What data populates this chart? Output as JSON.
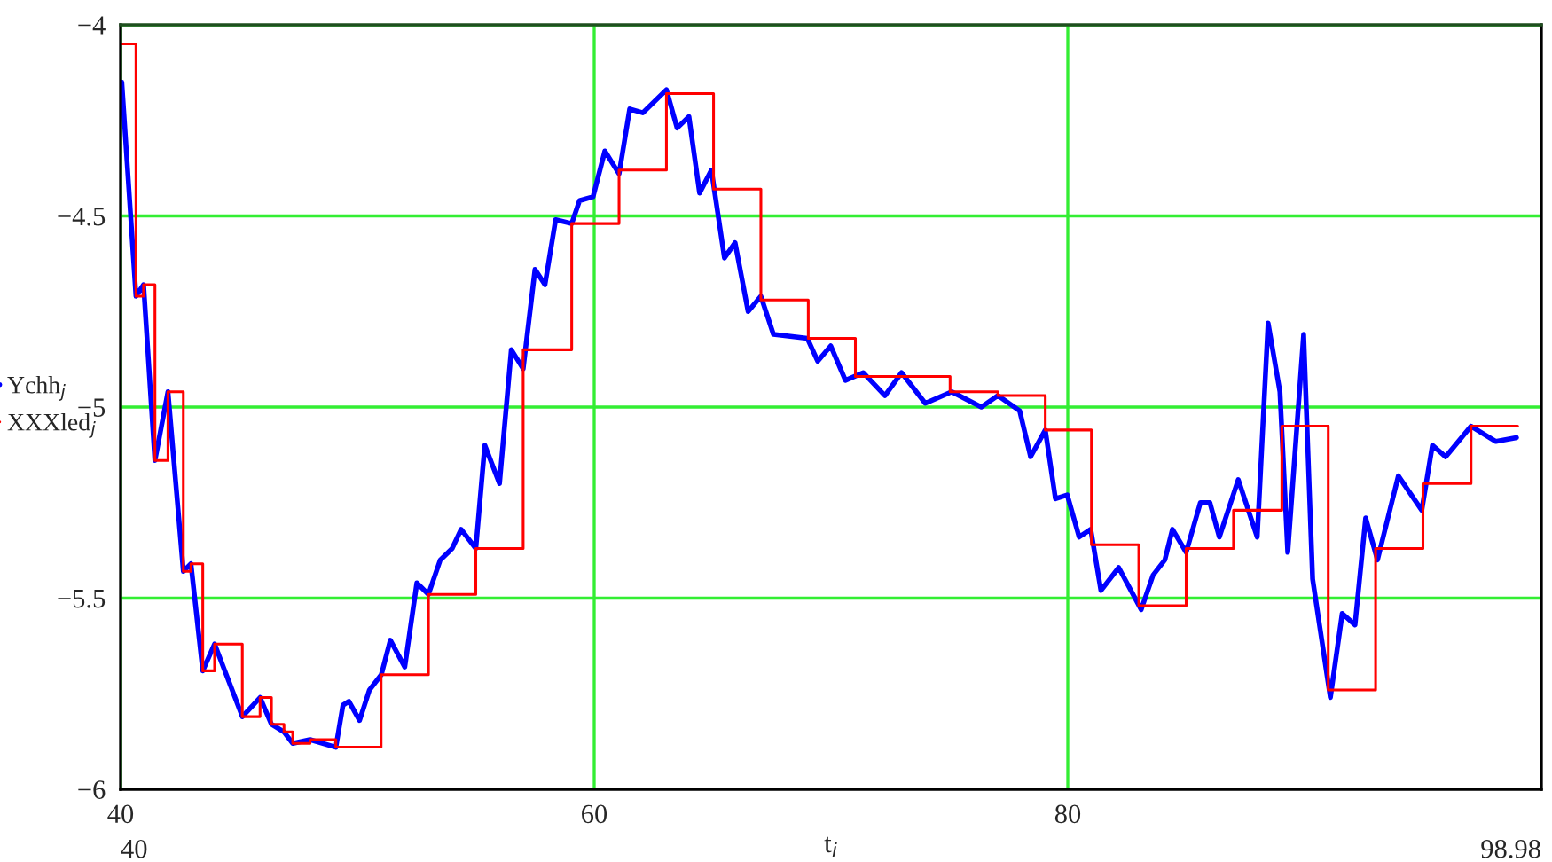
{
  "chart_data": {
    "type": "line",
    "xlabel": "t$_{i}$",
    "xlim": [
      40,
      100
    ],
    "ylim": [
      -6,
      -4
    ],
    "xticks": [
      40,
      60,
      80
    ],
    "yticks": [
      -4,
      -4.5,
      -5,
      -5.5,
      -6
    ],
    "grid": true,
    "legend": "left",
    "annotations": [
      "40",
      "98.98"
    ],
    "series": [
      {
        "name": "Ychh$_{j}$",
        "color": "#0000ff",
        "x": [
          40.05,
          40.65,
          40.97,
          41.45,
          42.0,
          42.65,
          42.97,
          43.47,
          43.97,
          45.14,
          45.89,
          46.37,
          46.9,
          47.27,
          48.0,
          49.09,
          49.39,
          49.64,
          50.09,
          50.51,
          51.01,
          51.39,
          52.0,
          52.51,
          53.0,
          53.5,
          54.0,
          54.38,
          55.0,
          55.38,
          56.0,
          56.5,
          57.0,
          57.5,
          57.92,
          58.37,
          59.05,
          59.38,
          59.95,
          60.45,
          61.05,
          61.5,
          62.05,
          63.05,
          63.5,
          64.0,
          64.45,
          64.95,
          65.5,
          65.95,
          66.5,
          67.04,
          67.57,
          69.0,
          69.44,
          69.99,
          70.61,
          71.36,
          72.28,
          72.98,
          73.98,
          75.1,
          76.35,
          77.05,
          77.97,
          78.43,
          79.05,
          79.48,
          79.98,
          80.48,
          80.97,
          81.4,
          82.15,
          83.1,
          83.6,
          84.1,
          84.42,
          85.0,
          85.6,
          86.0,
          86.4,
          87.2,
          88.0,
          88.46,
          88.96,
          89.29,
          89.96,
          90.34,
          91.09,
          91.59,
          92.13,
          92.58,
          93.08,
          93.96,
          94.95,
          95.4,
          95.96,
          97.03,
          98.08,
          98.95
        ],
        "values": [
          -4.15,
          -4.71,
          -4.68,
          -5.14,
          -4.96,
          -5.43,
          -5.41,
          -5.69,
          -5.62,
          -5.81,
          -5.76,
          -5.83,
          -5.85,
          -5.88,
          -5.87,
          -5.89,
          -5.78,
          -5.77,
          -5.82,
          -5.74,
          -5.7,
          -5.61,
          -5.68,
          -5.46,
          -5.49,
          -5.4,
          -5.37,
          -5.32,
          -5.37,
          -5.1,
          -5.2,
          -4.85,
          -4.9,
          -4.64,
          -4.68,
          -4.51,
          -4.52,
          -4.46,
          -4.45,
          -4.33,
          -4.39,
          -4.22,
          -4.23,
          -4.17,
          -4.27,
          -4.24,
          -4.44,
          -4.38,
          -4.61,
          -4.57,
          -4.75,
          -4.71,
          -4.81,
          -4.82,
          -4.88,
          -4.84,
          -4.93,
          -4.91,
          -4.97,
          -4.91,
          -4.99,
          -4.96,
          -5.0,
          -4.97,
          -5.01,
          -5.13,
          -5.06,
          -5.24,
          -5.23,
          -5.34,
          -5.32,
          -5.48,
          -5.42,
          -5.53,
          -5.44,
          -5.4,
          -5.32,
          -5.38,
          -5.25,
          -5.25,
          -5.34,
          -5.19,
          -5.34,
          -4.78,
          -4.96,
          -5.38,
          -4.81,
          -5.45,
          -5.76,
          -5.54,
          -5.57,
          -5.29,
          -5.4,
          -5.18,
          -5.27,
          -5.1,
          -5.13,
          -5.05,
          -5.09,
          -5.08
        ]
      },
      {
        "name": "XXXled$_{j}$",
        "color": "#ff0000",
        "type": "step",
        "x": [
          40.0,
          40.65,
          40.97,
          41.45,
          42.0,
          42.65,
          42.97,
          43.47,
          43.97,
          45.14,
          45.89,
          46.37,
          46.9,
          47.27,
          48.0,
          49.09,
          51.0,
          53.0,
          55.0,
          57.0,
          59.05,
          61.05,
          63.05,
          65.04,
          67.04,
          69.04,
          71.03,
          75.03,
          77.05,
          79.05,
          81.0,
          83.0,
          85.0,
          87.0,
          89.04,
          91.0,
          93.0,
          95.0,
          97.03,
          99.0
        ],
        "values": [
          -4.05,
          -4.71,
          -4.68,
          -5.14,
          -4.96,
          -5.43,
          -5.41,
          -5.69,
          -5.62,
          -5.81,
          -5.76,
          -5.83,
          -5.85,
          -5.88,
          -5.87,
          -5.89,
          -5.7,
          -5.49,
          -5.37,
          -4.85,
          -4.52,
          -4.38,
          -4.18,
          -4.43,
          -4.72,
          -4.82,
          -4.92,
          -4.96,
          -4.97,
          -5.06,
          -5.36,
          -5.52,
          -5.37,
          -5.27,
          -5.05,
          -5.74,
          -5.37,
          -5.2,
          -5.05,
          -5.05
        ]
      }
    ]
  }
}
